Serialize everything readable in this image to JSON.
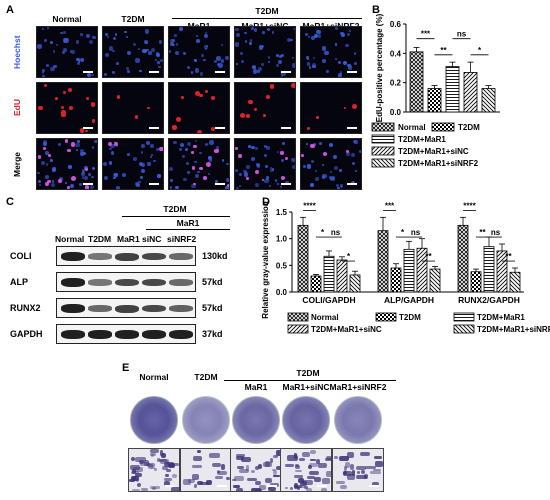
{
  "panels": {
    "a": "A",
    "b": "B",
    "c": "C",
    "d": "D",
    "e": "E"
  },
  "panel_a": {
    "group_header": "T2DM",
    "columns": [
      "Normal",
      "T2DM",
      "MaR1",
      "MaR1+siNC",
      "MaR1+siNRF2"
    ],
    "rows": [
      "Hoechst",
      "EdU",
      "Merge"
    ],
    "colors": {
      "hoechst": "#3a5ad8",
      "edu": "#e0202a",
      "merge": "#d050d8"
    }
  },
  "panel_c": {
    "group_header": "T2DM",
    "sub_header": "MaR1",
    "columns": [
      "Normal",
      "T2DM",
      "MaR1",
      "siNC",
      "siNRF2"
    ],
    "rows": [
      {
        "name": "COLI",
        "kd": "130kd"
      },
      {
        "name": "ALP",
        "kd": "57kd"
      },
      {
        "name": "RUNX2",
        "kd": "57kd"
      },
      {
        "name": "GAPDH",
        "kd": "37kd"
      }
    ]
  },
  "panel_e": {
    "group_header": "T2DM",
    "columns": [
      "Normal",
      "T2DM",
      "MaR1",
      "MaR1+siNC",
      "MaR1+siNRF2"
    ]
  },
  "chart_data": [
    {
      "type": "bar",
      "panel": "B",
      "ylabel": "EdU-positive percentage (%)",
      "ylim": [
        0,
        0.6
      ],
      "yticks": [
        "0.0",
        "0.2",
        "0.4",
        "0.6"
      ],
      "categories": [
        "Normal",
        "T2DM",
        "T2DM+MaR1",
        "T2DM+MaR1+siNC",
        "T2DM+MaR1+siNRF2"
      ],
      "values": [
        0.41,
        0.16,
        0.31,
        0.27,
        0.16
      ],
      "errors": [
        0.03,
        0.02,
        0.03,
        0.07,
        0.02
      ],
      "significance": [
        {
          "from": 0,
          "to": 1,
          "label": "***"
        },
        {
          "from": 1,
          "to": 2,
          "label": "**"
        },
        {
          "from": 2,
          "to": 3,
          "label": "ns"
        },
        {
          "from": 3,
          "to": 4,
          "label": "*"
        }
      ],
      "legend": [
        "Normal",
        "T2DM",
        "T2DM+MaR1",
        "T2DM+MaR1+siNC",
        "T2DM+MaR1+siNRF2"
      ]
    },
    {
      "type": "bar",
      "panel": "D",
      "ylabel": "Relative gray-value expression",
      "ylim": [
        0,
        1.5
      ],
      "yticks": [
        "0.0",
        "0.5",
        "1.0",
        "1.5"
      ],
      "categories": [
        "COLI/GAPDH",
        "ALP/GAPDH",
        "RUNX2/GAPDH"
      ],
      "series": [
        {
          "name": "Normal",
          "values": [
            1.25,
            1.15,
            1.25
          ],
          "errors": [
            0.15,
            0.25,
            0.15
          ]
        },
        {
          "name": "T2DM",
          "values": [
            0.3,
            0.45,
            0.38
          ],
          "errors": [
            0.03,
            0.08,
            0.05
          ]
        },
        {
          "name": "T2DM+MaR1",
          "values": [
            0.67,
            0.8,
            0.85
          ],
          "errors": [
            0.1,
            0.15,
            0.18
          ]
        },
        {
          "name": "T2DM+MaR1+siNC",
          "values": [
            0.6,
            0.82,
            0.77
          ],
          "errors": [
            0.06,
            0.18,
            0.13
          ]
        },
        {
          "name": "T2DM+MaR1+siNRF2",
          "values": [
            0.32,
            0.43,
            0.37
          ],
          "errors": [
            0.07,
            0.05,
            0.08
          ]
        }
      ],
      "significance": [
        [
          "****",
          "*",
          "ns",
          "*"
        ],
        [
          "***",
          "*",
          "ns",
          "**"
        ],
        [
          "****",
          "**",
          "ns",
          "**"
        ]
      ]
    }
  ]
}
